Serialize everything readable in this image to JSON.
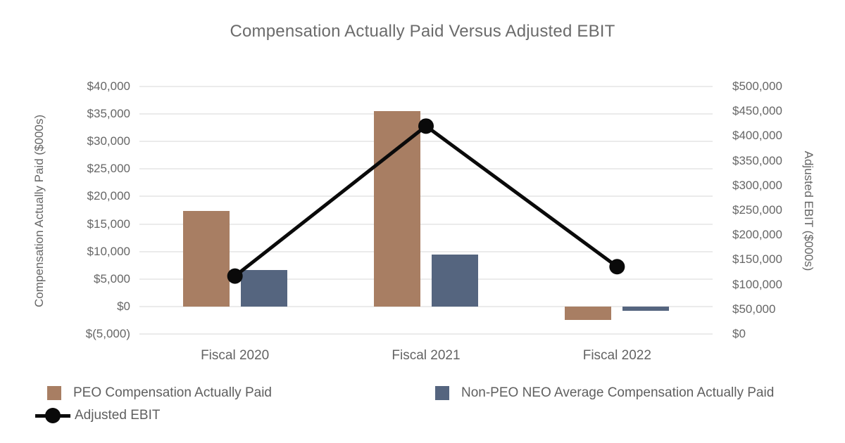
{
  "chart_data": {
    "type": "bar",
    "subtype": "grouped-bar-with-line-combo",
    "title": "Compensation Actually Paid Versus Adjusted EBIT",
    "categories": [
      "Fiscal 2020",
      "Fiscal 2021",
      "Fiscal 2022"
    ],
    "series": [
      {
        "name": "PEO Compensation Actually Paid",
        "type": "bar",
        "axis": "left",
        "color": "#a87e63",
        "values": [
          17400,
          35500,
          -2500
        ]
      },
      {
        "name": "Non-PEO NEO Average Compensation Actually Paid",
        "type": "bar",
        "axis": "left",
        "color": "#55657f",
        "values": [
          6600,
          9500,
          -750
        ]
      },
      {
        "name": "Adjusted EBIT",
        "type": "line",
        "axis": "right",
        "color": "#0a0a0a",
        "values": [
          117000,
          420000,
          136000
        ]
      }
    ],
    "left_axis": {
      "label": "Compensation Actually Paid ($000s)",
      "min": -5000,
      "max": 40000,
      "step": 5000,
      "ticks": [
        "$40,000",
        "$35,000",
        "$30,000",
        "$25,000",
        "$20,000",
        "$15,000",
        "$10,000",
        "$5,000",
        "$0",
        "$(5,000)"
      ]
    },
    "right_axis": {
      "label": "Adjusted EBIT ($000s)",
      "min": 0,
      "max": 500000,
      "step": 50000,
      "ticks": [
        "$500,000",
        "$450,000",
        "$400,000",
        "$350,000",
        "$300,000",
        "$250,000",
        "$200,000",
        "$150,000",
        "$100,000",
        "$50,000",
        "$0"
      ]
    },
    "grid": "horizontal-light",
    "legend_position": "bottom"
  },
  "colors": {
    "background": "#ffffff",
    "gridline": "#ebebeb",
    "text": "#666666",
    "title": "#6b6b6b",
    "bar_peo": "#a87e63",
    "bar_non_peo": "#55657f",
    "line_ebit": "#0a0a0a"
  }
}
